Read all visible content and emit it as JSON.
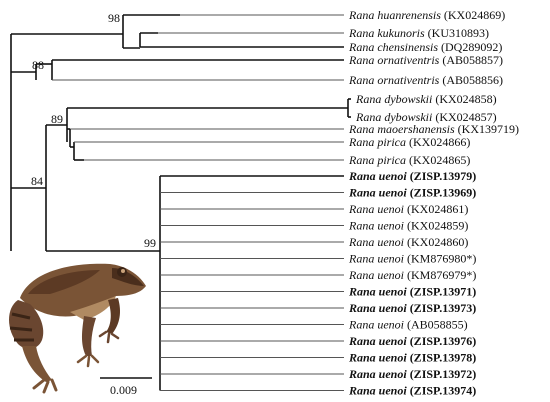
{
  "tree": {
    "taxa": [
      {
        "species": "Rana huanrenensis",
        "accession": "(KX024869)",
        "bold": false
      },
      {
        "species": "Rana kukunoris",
        "accession": "(KU310893)",
        "bold": false
      },
      {
        "species": "Rana chensinensis",
        "accession": "(DQ289092)",
        "bold": false
      },
      {
        "species": "Rana ornativentris",
        "accession": "(AB058857)",
        "bold": false
      },
      {
        "species": "Rana ornativentris",
        "accession": "(AB058856)",
        "bold": false
      },
      {
        "species": "Rana dybowskii",
        "accession": "(KX024858)",
        "bold": false
      },
      {
        "species": "Rana dybowskii",
        "accession": "(KX024857)",
        "bold": false
      },
      {
        "species": "Rana maoershanensis",
        "accession": "(KX139719)",
        "bold": false
      },
      {
        "species": "Rana pirica",
        "accession": "(KX024866)",
        "bold": false
      },
      {
        "species": "Rana pirica",
        "accession": "(KX024865)",
        "bold": false
      },
      {
        "species": "Rana uenoi",
        "accession": "(ZISP.13979)",
        "bold": true
      },
      {
        "species": "Rana uenoi",
        "accession": "(ZISP.13969)",
        "bold": true
      },
      {
        "species": "Rana uenoi",
        "accession": "(KX024861)",
        "bold": false
      },
      {
        "species": "Rana uenoi",
        "accession": "(KX024859)",
        "bold": false
      },
      {
        "species": "Rana uenoi",
        "accession": "(KX024860)",
        "bold": false
      },
      {
        "species": "Rana uenoi",
        "accession": "(KM876980*)",
        "bold": false
      },
      {
        "species": "Rana uenoi",
        "accession": "(KM876979*)",
        "bold": false
      },
      {
        "species": "Rana uenoi",
        "accession": "(ZISP.13971)",
        "bold": true
      },
      {
        "species": "Rana uenoi",
        "accession": "(ZISP.13973)",
        "bold": true
      },
      {
        "species": "Rana uenoi",
        "accession": "(AB058855)",
        "bold": false
      },
      {
        "species": "Rana uenoi",
        "accession": "(ZISP.13976)",
        "bold": true
      },
      {
        "species": "Rana uenoi",
        "accession": "(ZISP.13978)",
        "bold": true
      },
      {
        "species": "Rana uenoi",
        "accession": "(ZISP.13972)",
        "bold": true
      },
      {
        "species": "Rana uenoi",
        "accession": "(ZISP.13974)",
        "bold": true
      }
    ],
    "support_values": {
      "chensinensis_clade": "98",
      "ornativentris_clade": "88",
      "pirica_dybowskii_clade": "89",
      "main_clade": "84",
      "uenoi_clade": "99"
    },
    "scale_bar": {
      "label": "0.009"
    }
  },
  "colors": {
    "branch": "#111111",
    "text": "#111111",
    "frog_body": "#7a5436",
    "frog_dark": "#4a2e1c",
    "frog_light": "#b08a62"
  },
  "image": {
    "icon": "frog-photo-icon"
  }
}
